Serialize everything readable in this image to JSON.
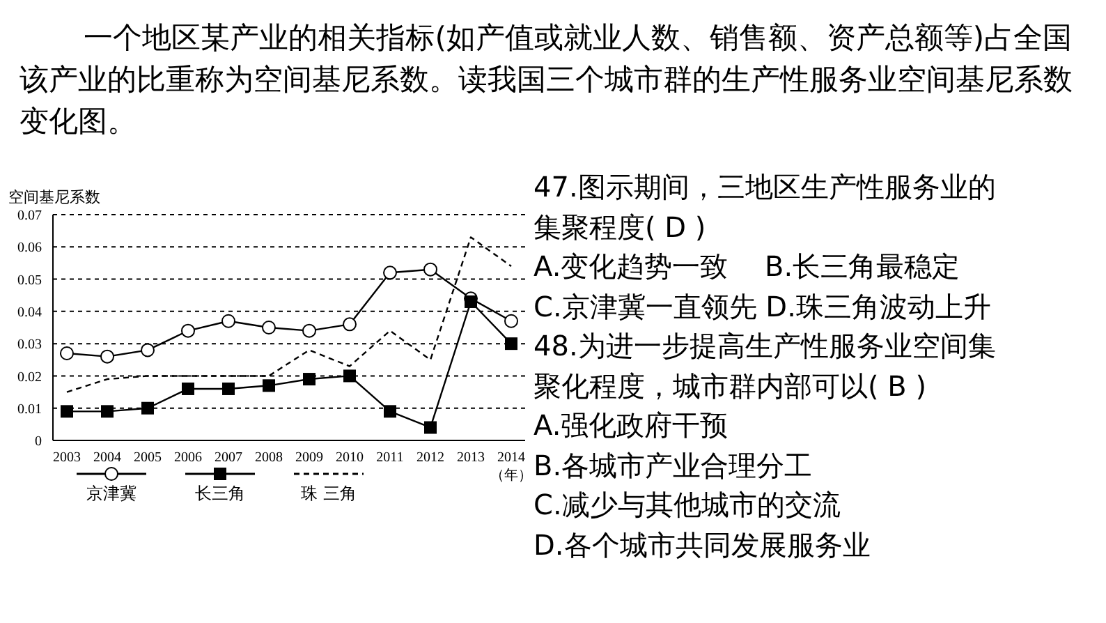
{
  "chart_data": {
    "type": "line",
    "title": "一个地区某产业的相关指标(如产值或就业人数、销售额、资产总额等)占全国该产业的比重称为空间基尼系数。读我国三个城市群的生产性服务业空间基尼系数变化图。",
    "ylabel": "空间基尼系数",
    "xlabel": "（年）",
    "categories": [
      "2003",
      "2004",
      "2005",
      "2006",
      "2007",
      "2008",
      "2009",
      "2010",
      "2011",
      "2012",
      "2013",
      "2014"
    ],
    "series": [
      {
        "name": "京津冀",
        "color": "#000000",
        "marker": "circle",
        "line_style": "solid",
        "values": [
          0.027,
          0.026,
          0.028,
          0.034,
          0.037,
          0.035,
          0.034,
          0.036,
          0.052,
          0.053,
          0.044,
          0.037
        ]
      },
      {
        "name": "长三角",
        "color": "#000000",
        "marker": "square",
        "line_style": "solid",
        "values": [
          0.009,
          0.009,
          0.01,
          0.016,
          0.016,
          0.017,
          0.019,
          0.02,
          0.009,
          0.004,
          0.043,
          0.03
        ]
      },
      {
        "name": "珠 三角",
        "color": "#000000",
        "marker": "none",
        "line_style": "dashed",
        "values": [
          0.015,
          0.019,
          0.02,
          0.02,
          0.02,
          0.02,
          0.028,
          0.023,
          0.034,
          0.025,
          0.063,
          0.054
        ]
      }
    ],
    "ylim": [
      0,
      0.07
    ],
    "yticks": [
      0,
      0.01,
      0.02,
      0.03,
      0.04,
      0.05,
      0.06,
      0.07
    ],
    "grid": "y",
    "legend": "bottom",
    "annotations": [
      "47.图示期间，三地区生产性服务业的",
      "集聚程度( D )",
      "A.变化趋势一致　 B.长三角最稳定",
      "C.京津冀一直领先 D.珠三角波动上升",
      "48.为进一步提高生产性服务业空间集",
      "聚化程度，城市群内部可以( B )",
      "A.强化政府干预",
      "B.各城市产业合理分工",
      "C.减少与其他城市的交流",
      "D.各个城市共同发展服务业"
    ]
  }
}
